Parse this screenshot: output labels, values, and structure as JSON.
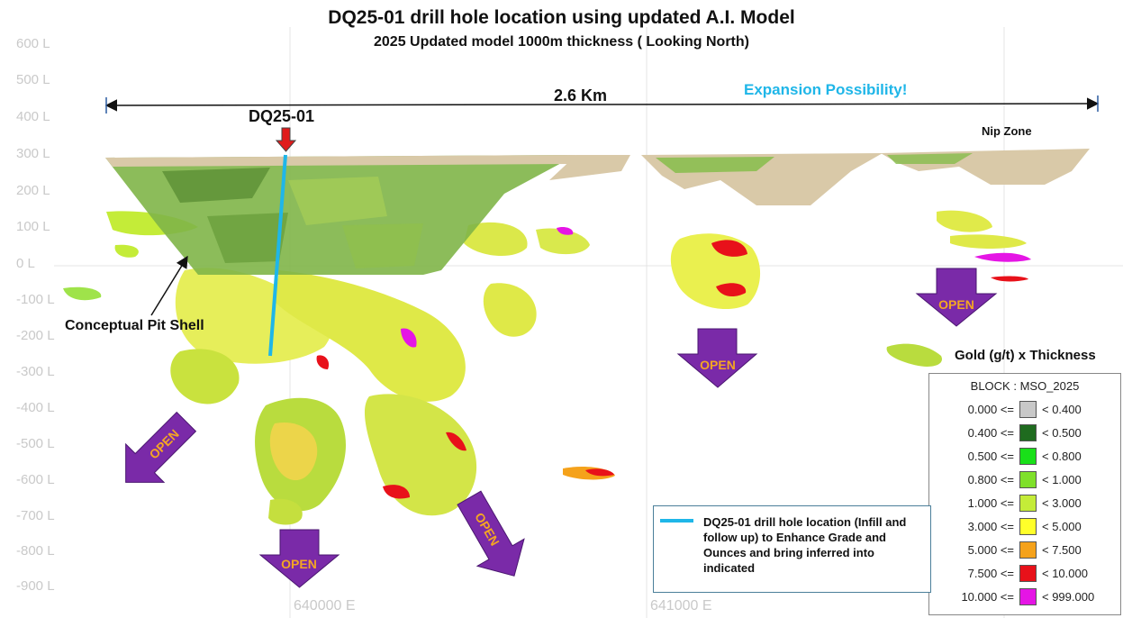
{
  "title": "DQ25-01 drill hole location using updated A.I. Model",
  "subtitle": "2025 Updated model 1000m thickness ( Looking North)",
  "elevation_labels": [
    "600 L",
    "500 L",
    "400 L",
    "300 L",
    "200 L",
    "100 L",
    "0 L",
    "-100 L",
    "-200 L",
    "-300 L",
    "-400 L",
    "-500 L",
    "-600 L",
    "-700 L",
    "-800 L",
    "-900 L"
  ],
  "easting_labels": [
    "640000 E",
    "641000 E"
  ],
  "scale_label": "2.6 Km",
  "expansion_label": "Expansion Possibility!",
  "drill_hole_label": "DQ25-01",
  "nip_zone_label": "Nip Zone",
  "pit_shell_label": "Conceptual Pit Shell",
  "open_label": "OPEN",
  "legend": {
    "title": "Gold (g/t) x Thickness",
    "header": "BLOCK : MSO_2025",
    "rows": [
      {
        "low": "0.000 <=",
        "high": "< 0.400",
        "color": "#c8c8c8"
      },
      {
        "low": "0.400 <=",
        "high": "< 0.500",
        "color": "#1f6b1f"
      },
      {
        "low": "0.500 <=",
        "high": "< 0.800",
        "color": "#19e019"
      },
      {
        "low": "0.800 <=",
        "high": "< 1.000",
        "color": "#7fe02a"
      },
      {
        "low": "1.000 <=",
        "high": "< 3.000",
        "color": "#c4ec38"
      },
      {
        "low": "3.000 <=",
        "high": "< 5.000",
        "color": "#ffff2a"
      },
      {
        "low": "5.000 <=",
        "high": "< 7.500",
        "color": "#f5a21b"
      },
      {
        "low": "7.500 <=",
        "high": "< 10.000",
        "color": "#e8111a"
      },
      {
        "low": "10.000 <=",
        "high": "< 999.000",
        "color": "#e515e5"
      }
    ]
  },
  "drill_note": "DQ25-01 drill hole location (Infill and follow up) to Enhance Grade and Ounces and bring inferred into indicated",
  "colors": {
    "drill_line": "#1fb6e8",
    "arrow_purple": "#7a2aa8",
    "arrow_red": "#e01b1b",
    "pit_tan": "#d9c9a8",
    "expansion_text": "#1fb6e8"
  }
}
